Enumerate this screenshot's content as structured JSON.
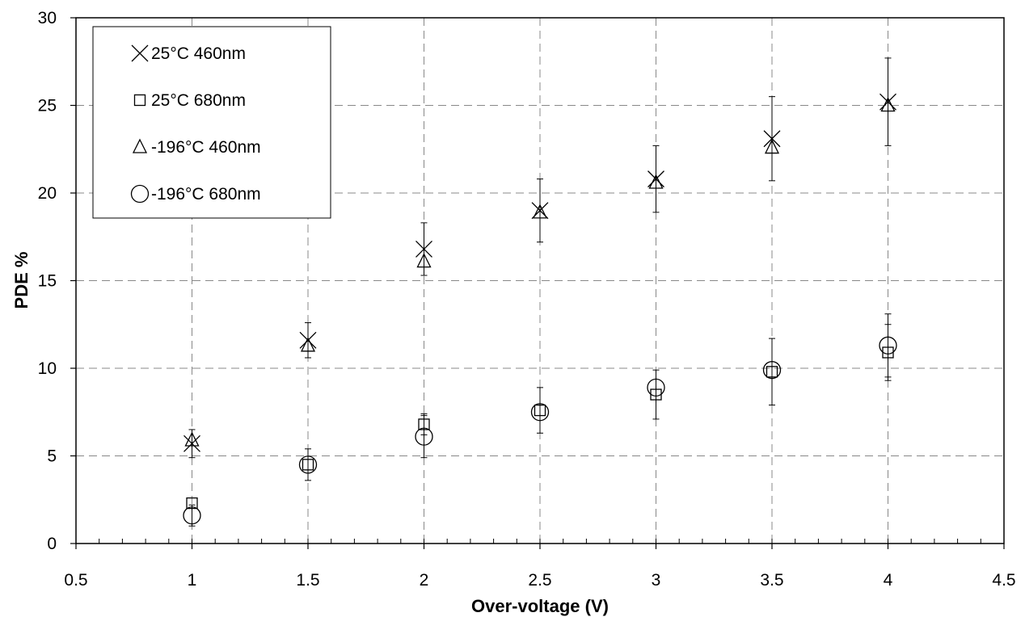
{
  "chart_data": {
    "type": "scatter",
    "title": "",
    "xlabel": "Over-voltage (V)",
    "ylabel": "PDE %",
    "xlim": [
      0.5,
      4.5
    ],
    "ylim": [
      0,
      30
    ],
    "x_ticks": [
      0.5,
      1,
      1.5,
      2,
      2.5,
      3,
      3.5,
      4,
      4.5
    ],
    "y_ticks": [
      0,
      5,
      10,
      15,
      20,
      25,
      30
    ],
    "x_tick_labels": [
      "0.5",
      "1",
      "1.5",
      "2",
      "2.5",
      "3",
      "3.5",
      "4",
      "4.5"
    ],
    "y_tick_labels": [
      "0",
      "5",
      "10",
      "15",
      "20",
      "25",
      "30"
    ],
    "grid": true,
    "legend_position": "top-left",
    "x_minor_step": 0.1,
    "series": [
      {
        "name": "25°C 460nm",
        "marker": "x",
        "color": "#000000",
        "x": [
          1,
          1.5,
          2,
          2.5,
          3,
          3.5,
          4
        ],
        "y": [
          5.7,
          11.6,
          16.8,
          19.0,
          20.8,
          23.1,
          25.2
        ],
        "err": [
          0.8,
          1.0,
          1.5,
          1.8,
          1.9,
          2.4,
          2.5
        ]
      },
      {
        "name": "25°C 680nm",
        "marker": "square",
        "color": "#000000",
        "x": [
          1,
          1.5,
          2,
          2.5,
          3,
          3.5,
          4
        ],
        "y": [
          2.3,
          4.5,
          6.8,
          7.6,
          8.5,
          9.8,
          10.9
        ],
        "err": [
          0.0,
          0.9,
          0.6,
          1.3,
          1.4,
          1.9,
          1.6
        ]
      },
      {
        "name": "-196°C 460nm",
        "marker": "triangle",
        "color": "#000000",
        "x": [
          1,
          1.5,
          2,
          2.5,
          3,
          3.5,
          4
        ],
        "y": [
          5.9,
          11.3,
          16.1,
          18.9,
          20.6,
          22.6,
          25.0
        ],
        "err": [
          0.0,
          0.0,
          0.0,
          0.0,
          0.0,
          0.0,
          0.0
        ]
      },
      {
        "name": "-196°C 680nm",
        "marker": "circle",
        "color": "#000000",
        "x": [
          1,
          1.5,
          2,
          2.5,
          3,
          3.5,
          4
        ],
        "y": [
          1.6,
          4.5,
          6.1,
          7.5,
          8.9,
          9.9,
          11.3
        ],
        "err": [
          0.6,
          0.0,
          1.2,
          0.0,
          0.0,
          0.0,
          1.8
        ]
      }
    ]
  }
}
